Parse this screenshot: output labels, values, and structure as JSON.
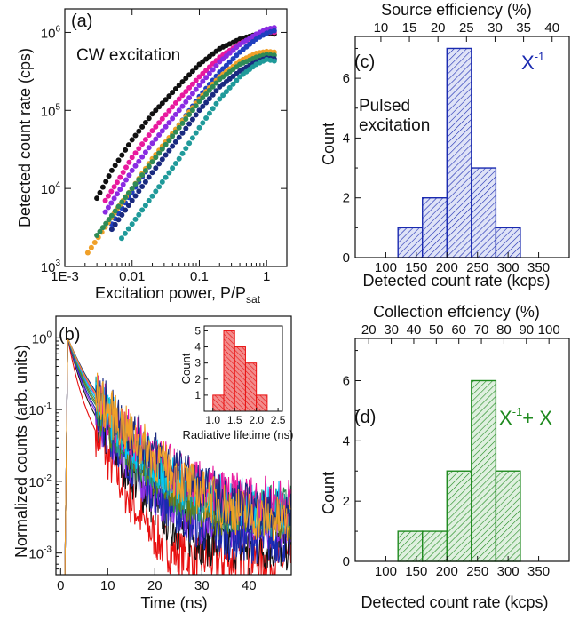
{
  "chart_data": [
    {
      "id": "a",
      "type": "scatter",
      "panel_label": "(a)",
      "annotation": "CW excitation",
      "xlabel": "Excitation power, P/P",
      "xlabel_sub": "sat",
      "ylabel": "Detected count rate (cps)",
      "xscale": "log",
      "yscale": "log",
      "xlim": [
        0.001,
        2
      ],
      "ylim": [
        1000,
        2000000
      ],
      "xticks": [
        {
          "v": 0.001,
          "label": "1E-3"
        },
        {
          "v": 0.01,
          "label": "0.01"
        },
        {
          "v": 0.1,
          "label": "0.1"
        },
        {
          "v": 1,
          "label": "1"
        }
      ],
      "yticks": [
        {
          "v": 1000,
          "base": "10",
          "exp": "3"
        },
        {
          "v": 10000,
          "base": "10",
          "exp": "4"
        },
        {
          "v": 100000,
          "base": "10",
          "exp": "5"
        },
        {
          "v": 1000000,
          "base": "10",
          "exp": "6"
        }
      ],
      "series": [
        {
          "color": "#111111",
          "x": [
            0.003,
            0.005,
            0.01,
            0.02,
            0.05,
            0.1,
            0.2,
            0.4,
            0.7,
            1.0,
            1.3
          ],
          "y": [
            7500,
            17000,
            42000,
            90000,
            210000,
            390000,
            620000,
            820000,
            940000,
            980000,
            950000
          ]
        },
        {
          "color": "#e8199e",
          "x": [
            0.004,
            0.006,
            0.01,
            0.02,
            0.05,
            0.1,
            0.2,
            0.4,
            0.7,
            1.0,
            1.3
          ],
          "y": [
            7000,
            12000,
            25000,
            55000,
            140000,
            270000,
            480000,
            720000,
            900000,
            1000000,
            1000000
          ]
        },
        {
          "color": "#8a2be2",
          "x": [
            0.004,
            0.006,
            0.01,
            0.02,
            0.05,
            0.1,
            0.2,
            0.4,
            0.7,
            1.0,
            1.3
          ],
          "y": [
            5000,
            8500,
            17000,
            38000,
            100000,
            210000,
            420000,
            700000,
            950000,
            1100000,
            1150000
          ]
        },
        {
          "color": "#1f3fbf",
          "x": [
            0.005,
            0.01,
            0.02,
            0.05,
            0.1,
            0.2,
            0.4,
            0.7,
            1.0,
            1.3
          ],
          "y": [
            3500,
            9000,
            22000,
            65000,
            150000,
            310000,
            560000,
            820000,
            980000,
            1050000
          ]
        },
        {
          "color": "#f0a028",
          "x": [
            0.0022,
            0.004,
            0.006,
            0.01,
            0.02,
            0.05,
            0.1,
            0.2,
            0.4,
            0.7,
            1.0,
            1.3
          ],
          "y": [
            1500,
            3200,
            5500,
            10000,
            24000,
            65000,
            140000,
            270000,
            430000,
            540000,
            570000,
            560000
          ]
        },
        {
          "color": "#2e8b57",
          "x": [
            0.003,
            0.005,
            0.01,
            0.02,
            0.05,
            0.1,
            0.2,
            0.4,
            0.7,
            1.0,
            1.3
          ],
          "y": [
            2500,
            4500,
            10000,
            22000,
            60000,
            130000,
            250000,
            390000,
            480000,
            520000,
            510000
          ]
        },
        {
          "color": "#1a2a80",
          "x": [
            0.005,
            0.01,
            0.02,
            0.05,
            0.1,
            0.2,
            0.4,
            0.7,
            1.0,
            1.3
          ],
          "y": [
            3000,
            7000,
            16000,
            45000,
            100000,
            200000,
            320000,
            420000,
            470000,
            460000
          ]
        },
        {
          "color": "#1f9a9a",
          "x": [
            0.007,
            0.01,
            0.02,
            0.05,
            0.1,
            0.2,
            0.4,
            0.7,
            1.0,
            1.3
          ],
          "y": [
            2300,
            3500,
            8000,
            24000,
            60000,
            140000,
            270000,
            390000,
            450000,
            430000
          ]
        }
      ]
    },
    {
      "id": "b",
      "type": "line",
      "panel_label": "(b)",
      "xlabel": "Time (ns)",
      "ylabel": "Normalized counts (arb. units)",
      "yscale": "log",
      "xlim": [
        -1,
        49
      ],
      "ylim": [
        0.0005,
        2
      ],
      "xticks": [
        {
          "v": 0,
          "label": "0"
        },
        {
          "v": 10,
          "label": "10"
        },
        {
          "v": 20,
          "label": "20"
        },
        {
          "v": 30,
          "label": "30"
        },
        {
          "v": 40,
          "label": "40"
        }
      ],
      "yticks": [
        {
          "v": 0.001,
          "base": "10",
          "exp": "-3"
        },
        {
          "v": 0.01,
          "base": "10",
          "exp": "-2"
        },
        {
          "v": 0.1,
          "base": "10",
          "exp": "-1"
        },
        {
          "v": 1,
          "base": "10",
          "exp": "0"
        }
      ],
      "t0": 1.5,
      "series": [
        {
          "color": "#e81010",
          "tau": 1.0,
          "bg": 0.0008
        },
        {
          "color": "#111111",
          "tau": 1.3,
          "bg": 0.0012
        },
        {
          "color": "#8a2be2",
          "tau": 1.4,
          "bg": 0.0025
        },
        {
          "color": "#1a2ab0",
          "tau": 1.5,
          "bg": 0.0015
        },
        {
          "color": "#2e8b57",
          "tau": 1.6,
          "bg": 0.004
        },
        {
          "color": "#6b7a10",
          "tau": 1.7,
          "bg": 0.003
        },
        {
          "color": "#1f9a9a",
          "tau": 1.8,
          "bg": 0.0035
        },
        {
          "color": "#00ccff",
          "tau": 1.9,
          "bg": 0.0045
        },
        {
          "color": "#e8199e",
          "tau": 2.0,
          "bg": 0.005
        },
        {
          "color": "#1a2a80",
          "tau": 2.2,
          "bg": 0.003
        },
        {
          "color": "#f0a028",
          "tau": 2.1,
          "bg": 0.0025
        }
      ],
      "inset": {
        "type": "bar",
        "xlabel": "Radiative lifetime (ns)",
        "ylabel": "Count",
        "xlim": [
          0.8,
          2.6
        ],
        "ylim": [
          0,
          5.3
        ],
        "xticks": [
          {
            "v": 1.0,
            "label": "1.0"
          },
          {
            "v": 1.5,
            "label": "1.5"
          },
          {
            "v": 2.0,
            "label": "2.0"
          },
          {
            "v": 2.5,
            "label": "2.5"
          }
        ],
        "yticks": [
          {
            "v": 1,
            "label": "1"
          },
          {
            "v": 2,
            "label": "2"
          },
          {
            "v": 3,
            "label": "3"
          },
          {
            "v": 4,
            "label": "4"
          },
          {
            "v": 5,
            "label": "5"
          }
        ],
        "bins": [
          [
            1.0,
            1.25
          ],
          [
            1.25,
            1.5
          ],
          [
            1.5,
            1.75
          ],
          [
            1.75,
            2.0
          ],
          [
            2.0,
            2.25
          ]
        ],
        "values": [
          1,
          5,
          4,
          3,
          1
        ],
        "color": "#e81010"
      }
    },
    {
      "id": "c",
      "type": "bar",
      "panel_label": "(c)",
      "annotation": "Pulsed\nexcitation",
      "legend_base": "X",
      "legend_sup": "-1",
      "color": "#1a2ab0",
      "xlabel": "Detected count rate (kcps)",
      "ylabel": "Count",
      "top_xlabel": "Source efficiency (%)",
      "xlim": [
        50,
        400
      ],
      "ylim": [
        0,
        7.4
      ],
      "xticks": [
        {
          "v": 100,
          "label": "100"
        },
        {
          "v": 150,
          "label": "150"
        },
        {
          "v": 200,
          "label": "200"
        },
        {
          "v": 250,
          "label": "250"
        },
        {
          "v": 300,
          "label": "300"
        },
        {
          "v": 350,
          "label": "350"
        }
      ],
      "yticks": [
        {
          "v": 0,
          "label": "0"
        },
        {
          "v": 2,
          "label": "2"
        },
        {
          "v": 4,
          "label": "4"
        },
        {
          "v": 6,
          "label": "6"
        }
      ],
      "top_ticks": [
        {
          "v": 10,
          "label": "10"
        },
        {
          "v": 15,
          "label": "15"
        },
        {
          "v": 20,
          "label": "20"
        },
        {
          "v": 25,
          "label": "25"
        },
        {
          "v": 30,
          "label": "30"
        },
        {
          "v": 35,
          "label": "35"
        },
        {
          "v": 40,
          "label": "40"
        }
      ],
      "top_lim": [
        5.5,
        43
      ],
      "bins": [
        [
          120,
          160
        ],
        [
          160,
          200
        ],
        [
          200,
          240
        ],
        [
          240,
          280
        ],
        [
          280,
          320
        ]
      ],
      "values": [
        1,
        2,
        7,
        3,
        1
      ]
    },
    {
      "id": "d",
      "type": "bar",
      "panel_label": "(d)",
      "legend_a_base": "X",
      "legend_a_sup": "-1",
      "legend_b": "+ X",
      "color": "#1f8a1f",
      "xlabel": "Detected count rate (kcps)",
      "ylabel": "Count",
      "top_xlabel": "Collection effciency (%)",
      "xlim": [
        50,
        400
      ],
      "ylim": [
        0,
        7.4
      ],
      "xticks": [
        {
          "v": 100,
          "label": "100"
        },
        {
          "v": 150,
          "label": "150"
        },
        {
          "v": 200,
          "label": "200"
        },
        {
          "v": 250,
          "label": "250"
        },
        {
          "v": 300,
          "label": "300"
        },
        {
          "v": 350,
          "label": "350"
        }
      ],
      "yticks": [
        {
          "v": 0,
          "label": "0"
        },
        {
          "v": 2,
          "label": "2"
        },
        {
          "v": 4,
          "label": "4"
        },
        {
          "v": 6,
          "label": "6"
        }
      ],
      "top_ticks": [
        {
          "v": 20,
          "label": "20"
        },
        {
          "v": 30,
          "label": "30"
        },
        {
          "v": 40,
          "label": "40"
        },
        {
          "v": 50,
          "label": "50"
        },
        {
          "v": 60,
          "label": "60"
        },
        {
          "v": 70,
          "label": "70"
        },
        {
          "v": 80,
          "label": "80"
        },
        {
          "v": 90,
          "label": "90"
        },
        {
          "v": 100,
          "label": "100"
        }
      ],
      "top_lim": [
        14,
        109
      ],
      "bins": [
        [
          120,
          160
        ],
        [
          160,
          200
        ],
        [
          200,
          240
        ],
        [
          240,
          280
        ],
        [
          280,
          320
        ]
      ],
      "values": [
        1,
        1,
        3,
        6,
        3
      ]
    }
  ]
}
